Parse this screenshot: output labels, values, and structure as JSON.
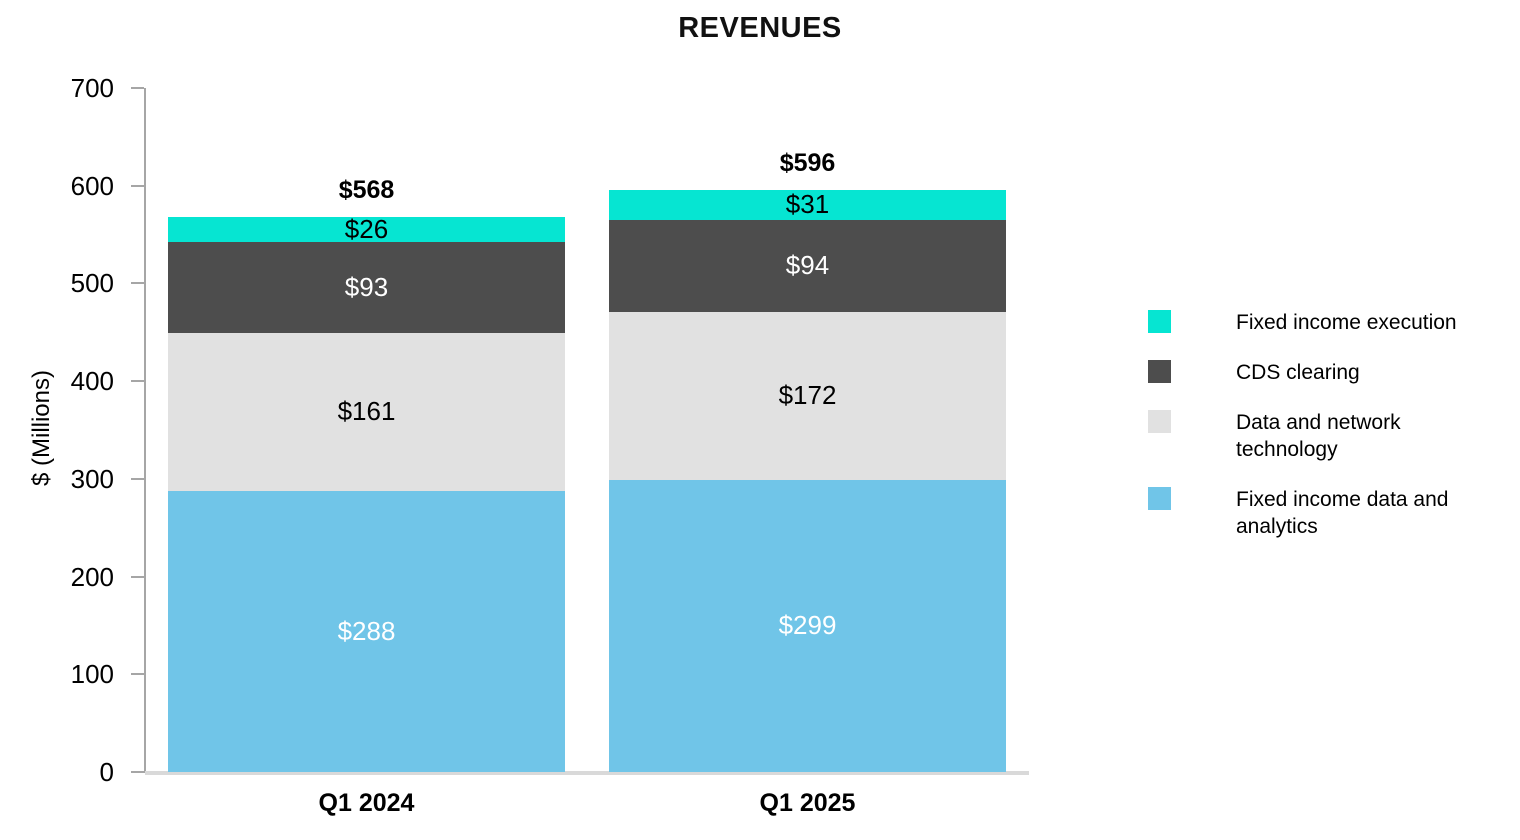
{
  "chart_data": {
    "type": "bar",
    "stacked": true,
    "title": "REVENUES",
    "ylabel": "$ (Millions)",
    "ylim": [
      0,
      700
    ],
    "yticks": [
      0,
      100,
      200,
      300,
      400,
      500,
      600,
      700
    ],
    "grid": false,
    "legend_position": "right",
    "categories": [
      "Q1 2024",
      "Q1 2025"
    ],
    "value_prefix": "$",
    "series": [
      {
        "name": "Fixed income data and analytics",
        "color": "#70C5E8",
        "label_color": "#FFFFFF",
        "values": [
          288,
          299
        ]
      },
      {
        "name": "Data and network technology",
        "color": "#E1E1E1",
        "label_color": "#000000",
        "values": [
          161,
          172
        ]
      },
      {
        "name": "CDS clearing",
        "color": "#4D4D4D",
        "label_color": "#FFFFFF",
        "values": [
          93,
          94
        ]
      },
      {
        "name": "Fixed income execution",
        "color": "#06E5D2",
        "label_color": "#000000",
        "values": [
          26,
          31
        ]
      }
    ],
    "totals": [
      568,
      596
    ]
  },
  "legend": {
    "items": [
      {
        "label": "Fixed income execution",
        "color": "#06E5D2"
      },
      {
        "label": "CDS clearing",
        "color": "#4D4D4D"
      },
      {
        "label": "Data and network technology",
        "color": "#E1E1E1"
      },
      {
        "label": "Fixed income data and analytics",
        "color": "#70C5E8"
      }
    ]
  },
  "axis_colors": {
    "y_axis_line": "#A6A6A6",
    "x_axis_line": "#D9D9D9"
  }
}
